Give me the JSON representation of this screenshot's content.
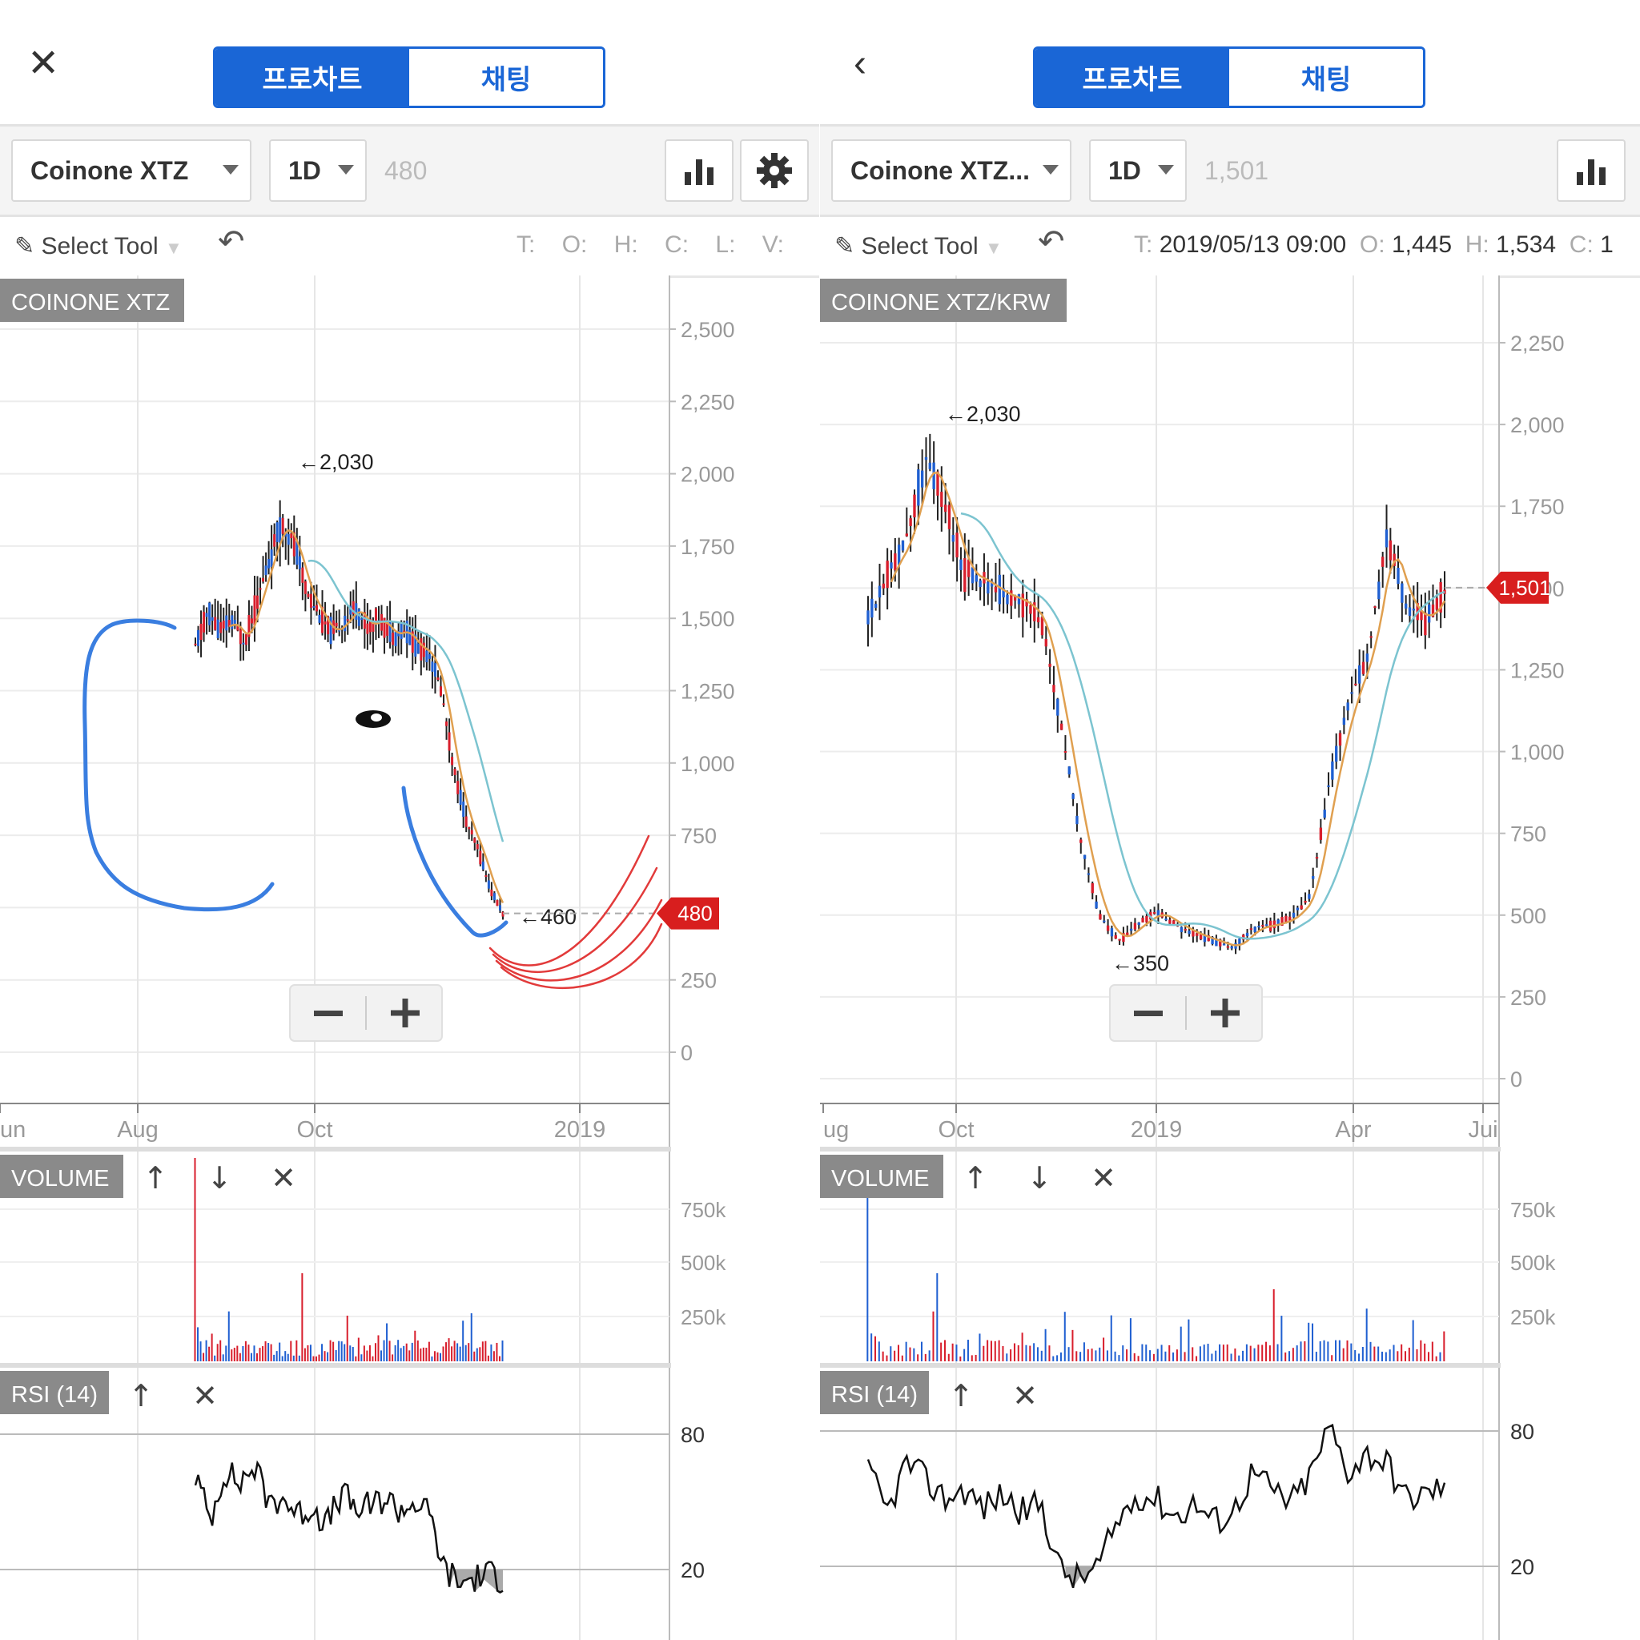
{
  "colors": {
    "accent": "#1a66d6",
    "up": "#d81e2c",
    "down": "#1f5fd1",
    "ma_short": "#e0a050",
    "ma_long": "#7cc4d0",
    "price_badge": "#d81e1e",
    "drawing_blue": "#3a7ee0",
    "drawing_red": "#e23a3a"
  },
  "left": {
    "nav_icon": "close-icon",
    "tabs": [
      "프로차트",
      "채팅"
    ],
    "symbol": "Coinone XTZ",
    "interval": "1D",
    "last_price": "480",
    "tool": "Select Tool",
    "ohlc": {
      "T": "T:",
      "O": "O:",
      "H": "H:",
      "C": "C:",
      "L": "L:",
      "V": "V:"
    },
    "chart_label": "COINONE XTZ",
    "volume_label": "VOLUME",
    "rsi_label": "RSI (14)",
    "price_badge": "480"
  },
  "right": {
    "nav_icon": "chevron-left-icon",
    "tabs": [
      "프로차트",
      "채팅"
    ],
    "symbol": "Coinone XTZ...",
    "interval": "1D",
    "last_price": "1,501",
    "tool": "Select Tool",
    "ohlc_t": "T:",
    "ohlc_t_val": "2019/05/13 09:00",
    "ohlc_o": "O:",
    "ohlc_o_val": "1,445",
    "ohlc_h": "H:",
    "ohlc_h_val": "1,534",
    "ohlc_c": "C:",
    "ohlc_c_val": "1",
    "chart_label": "COINONE XTZ/KRW",
    "volume_label": "VOLUME",
    "rsi_label": "RSI (14)",
    "price_badge": "1,501"
  },
  "chart_data": [
    {
      "type": "candlestick",
      "panel": "left",
      "title": "COINONE XTZ",
      "y_ticks": [
        "2,500",
        "2,250",
        "2,000",
        "1,750",
        "1,500",
        "1,250",
        "1,000",
        "750",
        "500",
        "250",
        "0"
      ],
      "ylim": [
        0,
        2500
      ],
      "x_ticks": [
        "un",
        "Aug",
        "Oct",
        "2019"
      ],
      "annotations": [
        "←2,030",
        "←460"
      ],
      "last_price": 480,
      "close_series_approx": [
        1400,
        1520,
        1460,
        1490,
        1420,
        1560,
        1700,
        1830,
        1760,
        1600,
        1520,
        1450,
        1480,
        1540,
        1470,
        1500,
        1440,
        1460,
        1400,
        1380,
        1250,
        980,
        800,
        700,
        560,
        480
      ],
      "volume_ticks": [
        "750k",
        "500k",
        "250k"
      ],
      "rsi_ticks": [
        "80",
        "20"
      ],
      "rsi_series_approx": [
        62,
        42,
        64,
        58,
        66,
        50,
        52,
        44,
        48,
        40,
        54,
        46,
        48,
        52,
        46,
        50,
        44,
        20,
        14,
        16,
        18,
        16
      ]
    },
    {
      "type": "candlestick",
      "panel": "right",
      "title": "COINONE XTZ/KRW",
      "y_ticks": [
        "2,250",
        "2,000",
        "1,750",
        "1,500",
        "1,250",
        "1,000",
        "750",
        "500",
        "250",
        "0"
      ],
      "ylim": [
        0,
        2250
      ],
      "x_ticks": [
        "ug",
        "Oct",
        "2019",
        "Apr",
        "Jui"
      ],
      "annotations": [
        "←2,030",
        "←350"
      ],
      "last_price": 1501,
      "close_series_approx": [
        1400,
        1550,
        1650,
        1900,
        1750,
        1550,
        1520,
        1480,
        1460,
        1400,
        1100,
        750,
        500,
        420,
        470,
        510,
        470,
        440,
        420,
        400,
        460,
        470,
        490,
        560,
        900,
        1150,
        1300,
        1650,
        1450,
        1400,
        1501
      ],
      "volume_ticks": [
        "750k",
        "500k",
        "250k"
      ],
      "rsi_ticks": [
        "80",
        "20"
      ],
      "rsi_series_approx": [
        62,
        44,
        66,
        58,
        50,
        54,
        46,
        52,
        44,
        48,
        18,
        14,
        20,
        40,
        52,
        50,
        42,
        48,
        40,
        44,
        62,
        54,
        48,
        60,
        82,
        62,
        70,
        66,
        50,
        52,
        56
      ]
    }
  ]
}
